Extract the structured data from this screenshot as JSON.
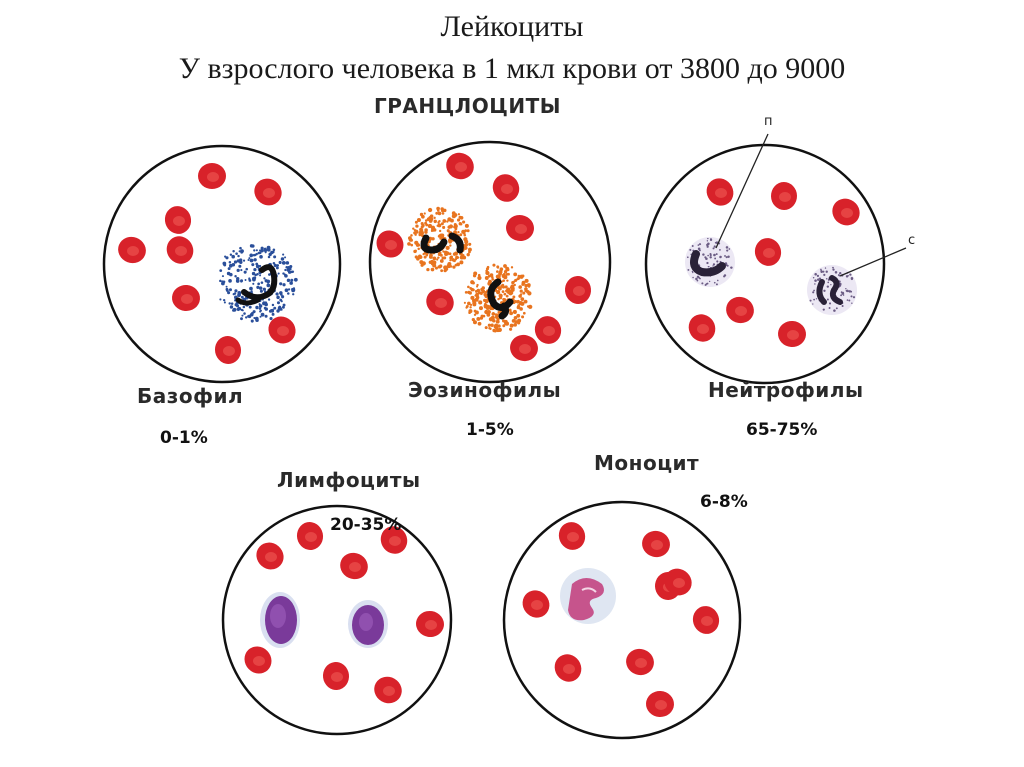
{
  "title": "Лейкоциты",
  "subtitle": "У взрослого человека в 1 мкл крови от 3800 до 9000",
  "group_heading": "ГРАНЦЛОЦИТЫ",
  "cells": {
    "basophil": {
      "label": "Базофил",
      "percent": "0-1%"
    },
    "eosinophil": {
      "label": "Эозинофилы",
      "percent": "1-5%"
    },
    "neutrophil": {
      "label": "Нейтрофилы",
      "percent": "65-75%",
      "marker_p": "п",
      "marker_c": "с"
    },
    "lymphocyte": {
      "label": "Лимфоциты",
      "percent": "20-35%"
    },
    "monocyte": {
      "label": "Моноцит",
      "percent": "6-8%"
    }
  },
  "colors": {
    "rbc": "#d8222a",
    "basophil_granules": "#2a4f9a",
    "eosinophil_granules": "#e8741f",
    "neutrophil_cytoplasm": "#c9c4de",
    "lymphocyte_nucleus": "#7a3a9a",
    "monocyte_nucleus": "#c23a7a"
  }
}
